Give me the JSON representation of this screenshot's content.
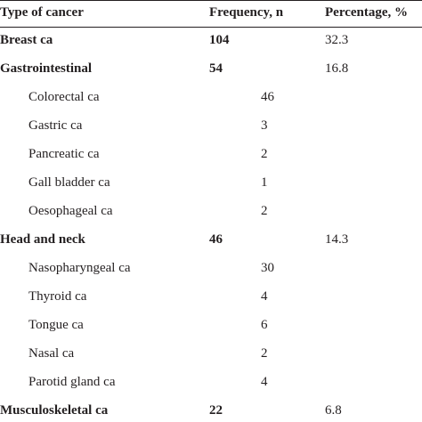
{
  "table": {
    "headers": {
      "type": "Type of cancer",
      "frequency": "Frequency, n",
      "percentage": "Percentage, %"
    },
    "rows": [
      {
        "name": "Breast ca",
        "frequency": "104",
        "percentage": "32.3",
        "level": "category"
      },
      {
        "name": "Gastrointestinal",
        "frequency": "54",
        "percentage": "16.8",
        "level": "category"
      },
      {
        "name": "Colorectal ca",
        "frequency": "46",
        "percentage": "",
        "level": "sub"
      },
      {
        "name": "Gastric ca",
        "frequency": "3",
        "percentage": "",
        "level": "sub"
      },
      {
        "name": "Pancreatic ca",
        "frequency": "2",
        "percentage": "",
        "level": "sub"
      },
      {
        "name": "Gall bladder ca",
        "frequency": "1",
        "percentage": "",
        "level": "sub"
      },
      {
        "name": "Oesophageal ca",
        "frequency": "2",
        "percentage": "",
        "level": "sub"
      },
      {
        "name": "Head and neck",
        "frequency": "46",
        "percentage": "14.3",
        "level": "category"
      },
      {
        "name": "Nasopharyngeal ca",
        "frequency": "30",
        "percentage": "",
        "level": "sub"
      },
      {
        "name": "Thyroid ca",
        "frequency": "4",
        "percentage": "",
        "level": "sub"
      },
      {
        "name": "Tongue ca",
        "frequency": "6",
        "percentage": "",
        "level": "sub"
      },
      {
        "name": "Nasal ca",
        "frequency": "2",
        "percentage": "",
        "level": "sub"
      },
      {
        "name": "Parotid gland ca",
        "frequency": "4",
        "percentage": "",
        "level": "sub"
      },
      {
        "name": "Musculoskeletal ca",
        "frequency": "22",
        "percentage": "6.8",
        "level": "category"
      }
    ]
  }
}
